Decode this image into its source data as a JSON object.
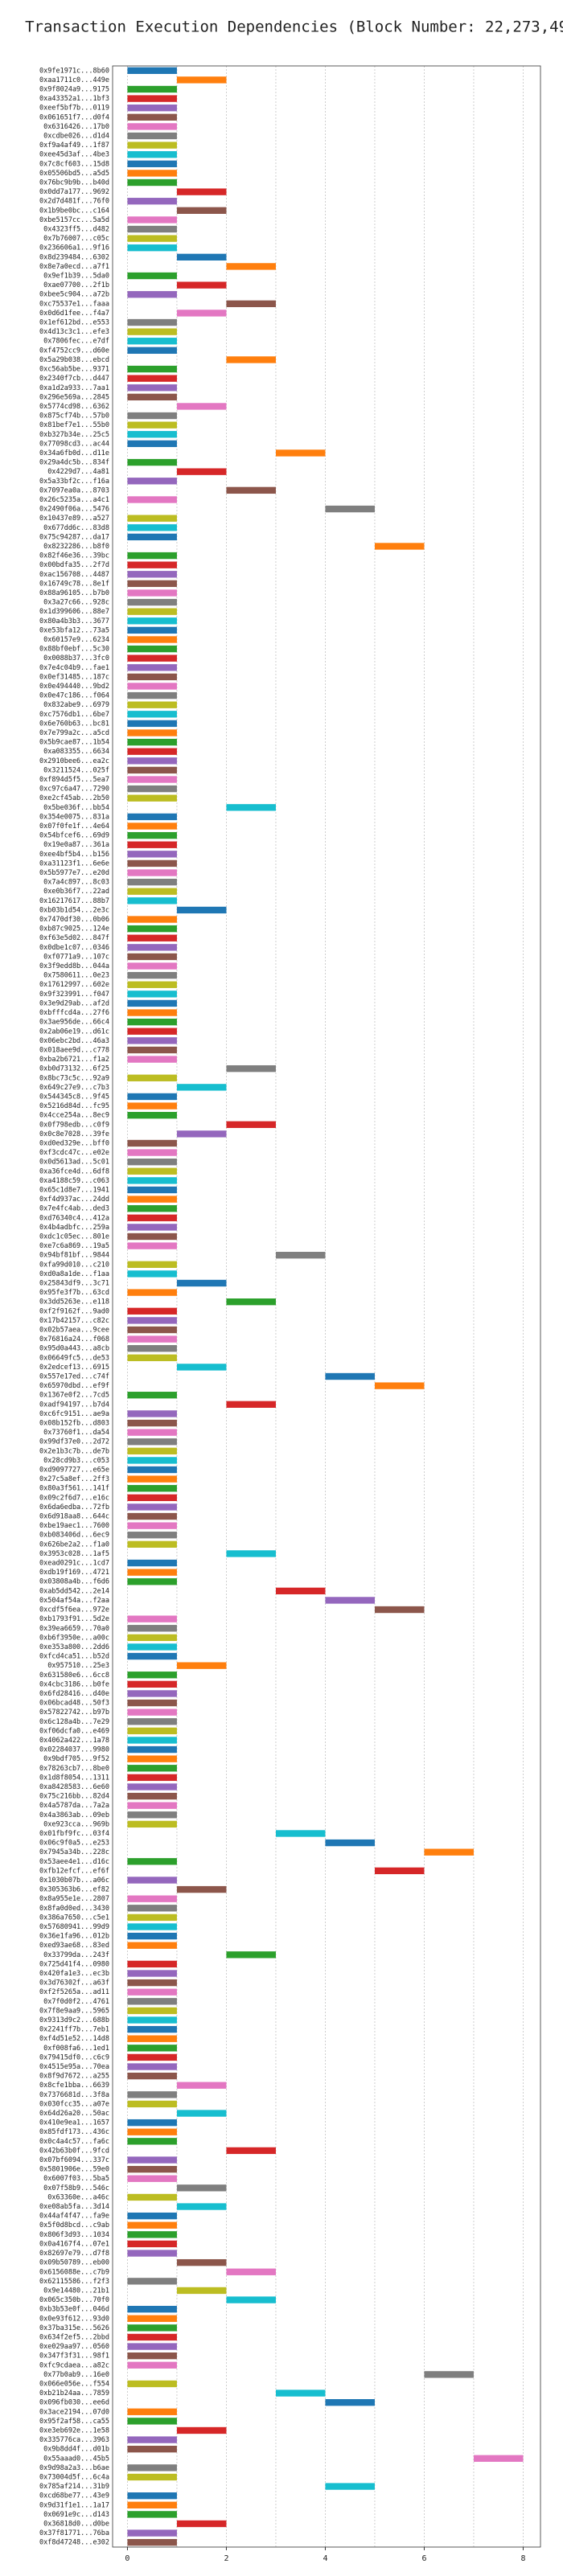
{
  "chart_data": {
    "type": "gantt",
    "title": "Transaction Execution Dependencies (Block Number: 22,273,496)",
    "colors": [
      "#1f77b4",
      "#ff7f0e",
      "#2ca02c",
      "#d62728",
      "#9467bd",
      "#8c564b",
      "#e377c2",
      "#7f7f7f",
      "#bcbd22",
      "#17becf"
    ],
    "xlim": [
      -0.3,
      8.35
    ],
    "xticks": [
      0,
      2,
      4,
      6,
      8
    ],
    "grid_xticks": [
      0,
      1,
      2,
      3,
      4,
      5,
      6,
      7,
      8
    ],
    "grid": true,
    "labels": [
      "0x9fe1971c...8b60",
      "0xaa1711c0...449e",
      "0x9f8024a9...9175",
      "0xa43352a1...1bf3",
      "0xeef5bf7b...0119",
      "0x061651f7...d0f4",
      "0x6316426...17b0",
      "0xcdbe026...d1d4",
      "0xf9a4af49...1f87",
      "0xee45d3af...4be3",
      "0x7c8cf603...15d8",
      "0x05506bd5...a5d5",
      "0x76bc9b9b...b40d",
      "0x0dd7a177...9692",
      "0x2d7d481f...76f0",
      "0x1b9be0bc...c164",
      "0xbe5157cc...5a5d",
      "0x4323ff5...d482",
      "0x7b76007...c05c",
      "0x236606a1...9f16",
      "0x8d239484...6302",
      "0x8e7a0ecd...a7f1",
      "0x9ef1b39...5da0",
      "0xae07700...2f1b",
      "0xbee5c904...a72b",
      "0xc75537e1...faaa",
      "0x0d6d1fee...f4a7",
      "0x1ef612bd...e553",
      "0x4d13c3c1...efe3",
      "0x7806fec...e7df",
      "0xf4752cc9...d60e",
      "0x5a29b038...ebcd",
      "0xc56ab5be...9371",
      "0x2340f7cb...d447",
      "0xa1d2a933...7aa1",
      "0x296e569a...2845",
      "0x5774cd98...6362",
      "0x875cf74b...57b0",
      "0x81bef7e1...55b0",
      "0xb327b34e...25c5",
      "0x77098cd3...ac44",
      "0x34a6fb0d...d11e",
      "0x29a4dc5b...834f",
      "0x4229d7...4a81",
      "0x5a33bf2c...f16a",
      "0x7097ea0a...8703",
      "0x26c5235a...a4c1",
      "0x2490f06a...5476",
      "0x10437e89...a527",
      "0x677dd6c...83d8",
      "0x75c94287...da17",
      "0x8232286...b8f0",
      "0x82f46e36...39bc",
      "0x00bdfa35...2f7d",
      "0xac156708...4487",
      "0x16749c78...8e1f",
      "0x88a96105...b7b0",
      "0x3a27c66...928c",
      "0x1d399606...88e7",
      "0x80a4b3b3...3677",
      "0xe53bfa12...73a5",
      "0x60157e9...6234",
      "0x88bf0ebf...5c30",
      "0x0088b37...3fc0",
      "0x7e4c04b9...fae1",
      "0x0ef31485...187c",
      "0x0e494440...9bd2",
      "0x0e47c186...f064",
      "0x832abe9...6979",
      "0xc7576db1...6be7",
      "0x6e760b63...bc81",
      "0x7e799a2c...a5cd",
      "0x5b9cae87...1b54",
      "0xa083355...6634",
      "0x2910bee6...ea2c",
      "0x3211524...025f",
      "0xf894d5f5...5ea7",
      "0xc97c6a47...7290",
      "0xe2cf45ab...2b50",
      "0x5be036f...bb54",
      "0x354e0075...831a",
      "0x07f0fe1f...4e64",
      "0x54bfcef6...69d9",
      "0x19e0a87...361a",
      "0xee4bf5b4...b156",
      "0xa31123f1...6e6e",
      "0x5b5977e7...e20d",
      "0x7a4c897...8c03",
      "0xe0b36f7...22ad",
      "0x16217617...88b7",
      "0xb03b1d54...2e3c",
      "0x7470df30...0b06",
      "0xb87c9025...124e",
      "0xf63e5d02...847f",
      "0x0dbe1c07...0346",
      "0xf0771a9...107c",
      "0x3f9edd8b...044a",
      "0x7580611...0e23",
      "0x17612997...602e",
      "0x9f323991...f047",
      "0x3e9d29ab...af2d",
      "0xbfffcd4a...27f6",
      "0x3ae956de...66c4",
      "0x2ab06e19...d61c",
      "0x06ebc2bd...46a3",
      "0x018aee9d...c778",
      "0xba2b6721...f1a2",
      "0xb0d73132...6f25",
      "0x8bc73c5c...92a9",
      "0x649c27e9...c7b3",
      "0x544345c8...9f45",
      "0x5216d84d...fc95",
      "0x4cce254a...8ec9",
      "0x0f798edb...c0f9",
      "0x0c8e7028...39fe",
      "0xd0ed329e...bff0",
      "0xf3cdc47c...e02e",
      "0x0d5613ad...5c01",
      "0xa36fce4d...6df8",
      "0xa4188c59...c063",
      "0x65c1d8e7...1941",
      "0xf4d937ac...24dd",
      "0x7e4fc4ab...ded3",
      "0xd76340c4...412a",
      "0x4b4adbfc...259a",
      "0xdc1c05ec...801e",
      "0xe7c6a869...19a5",
      "0x94bf81bf...9844",
      "0xfa99d010...c210",
      "0xd0a8a1de...f1aa",
      "0x25843df9...3c71",
      "0x95fe3f7b...63cd",
      "0x3dd5263e...e118",
      "0xf2f9162f...9ad0",
      "0x17b42157...c82c",
      "0x02b57aea...9cee",
      "0x76816a24...f068",
      "0x95d0a443...a8cb",
      "0x06649fc5...de53",
      "0x2edcef13...6915",
      "0x557e17ed...c74f",
      "0x65970dbd...ef9f",
      "0x1367e0f2...7cd5",
      "0xadf94197...b7d4",
      "0xc6fc9151...ae9a",
      "0x08b152fb...d803",
      "0x73760f1...da54",
      "0x99df37e0...2d72",
      "0x2e1b3c7b...de7b",
      "0x28cd9b3...c053",
      "0xd9097727...e65e",
      "0x27c5a8ef...2ff3",
      "0x80a3f561...141f",
      "0x09c2f6d7...e16c",
      "0x6da6edba...72fb",
      "0x6d918aa8...644c",
      "0xbe19aec1...7600",
      "0xb083406d...6ec9",
      "0x626be2a2...f1a0",
      "0x3953c028...1af5",
      "0xead0291c...1cd7",
      "0xdb19f169...4721",
      "0x03808a4b...f6d6",
      "0xab5dd542...2e14",
      "0x504af54a...f2aa",
      "0xcdf5f6ea...972e",
      "0xb1793f91...5d2e",
      "0x39ea6659...70a0",
      "0xb6f3950e...a00c",
      "0xe353a800...2dd6",
      "0xfcd4ca51...b52d",
      "0x957510...25e3",
      "0x631580e6...6cc8",
      "0x4cbc3186...b0fe",
      "0x6fd28416...d40e",
      "0x06bcad48...50f3",
      "0x57822742...b97b",
      "0x6c128a4b...7e29",
      "0xf06dcfa0...e469",
      "0x4062a422...1a78",
      "0x02284037...9980",
      "0x9bdf705...9f52",
      "0x78263cb7...8be0",
      "0x1d8f8054...1311",
      "0xa8428583...6e60",
      "0x75c216bb...82d4",
      "0x4a5787da...7a2a",
      "0x4a3863ab...09eb",
      "0xe923cca...969b",
      "0x01fbf9fc...03f4",
      "0x06c9f0a5...e253",
      "0x7945a34b...228c",
      "0x53aee4e1...d16c",
      "0xfb12efcf...ef6f",
      "0x1030b07b...a06c",
      "0x305363b6...ef82",
      "0x8a955e1e...2807",
      "0x8fa0d0ed...3430",
      "0x386a7650...c5e1",
      "0x57680941...99d9",
      "0x36e1fa96...012b",
      "0xed93ae68...83ed",
      "0x33799da...243f",
      "0x725d41f4...0980",
      "0x420fa1e3...ec3b",
      "0x3d76302f...a63f",
      "0xf2f5265a...ad11",
      "0x7f0d0f2...4761",
      "0x7f8e9aa9...5965",
      "0x9313d9c2...688b",
      "0x2241ff7b...7eb1",
      "0xf4d51e52...14d8",
      "0xf008fa6...1ed1",
      "0x79415df0...c6c9",
      "0x4515e95a...70ea",
      "0x8f9d7672...a255",
      "0x8cfe1bba...6639",
      "0x7376681d...3f8a",
      "0x030fcc35...a07e",
      "0x64d26a20...50ac",
      "0x410e9ea1...1657",
      "0x85fdf173...436c",
      "0x0c4a4c57...fa6c",
      "0x42b63b0f...9fcd",
      "0x07bf6094...337c",
      "0x5801906e...59e0",
      "0x6007f03...5ba5",
      "0x07f58b9...546c",
      "0x63360e...a46c",
      "0xe08ab5fa...3d14",
      "0x44af4f47...fa9e",
      "0x5f0d8bcd...c9ab",
      "0x806f3d93...1034",
      "0x0a4167f4...07e1",
      "0x82697e79...d7f8",
      "0x09b50789...eb00",
      "0x6156088e...c7b9",
      "0x62115586...f2f3",
      "0x9e14480...21b1",
      "0x065c350b...70f0",
      "0xb3b53e0f...046d",
      "0x0e93f612...93d0",
      "0x37ba315e...5626",
      "0x634f2ef5...2bbd",
      "0xe029aa97...0560",
      "0x347f3f31...98f1",
      "0xfc9cdaea...a82c",
      "0x77b0ab9...16e0",
      "0x066e056e...f554",
      "0xb21b24aa...7859",
      "0x096fb030...ee6d",
      "0x3ace2194...07d0",
      "0x95f2af58...ca55",
      "0xe3eb692e...1e58",
      "0x335776ca...3963",
      "0x9b8dd4f...d01b",
      "0x55aaad0...45b5",
      "0x9d98a2a3...b6ae",
      "0x73004d5f...6c4a",
      "0x785af214...31b9",
      "0xcd68be77...43e9",
      "0x9d31f1e1...1a17",
      "0x0691e9c...d143",
      "0x36818d0...d0be",
      "0x37f81771...76ba",
      "0xf8d47248...e302"
    ],
    "start": [
      0,
      1,
      0,
      0,
      0,
      0,
      0,
      0,
      0,
      0,
      0,
      0,
      0,
      1,
      0,
      1,
      0,
      0,
      0,
      0,
      1,
      2,
      0,
      1,
      0,
      2,
      1,
      0,
      0,
      0,
      0,
      2,
      0,
      0,
      0,
      0,
      1,
      0,
      0,
      0,
      0,
      3,
      0,
      1,
      0,
      2,
      0,
      4,
      0,
      0,
      0,
      5,
      0,
      0,
      0,
      0,
      0,
      0,
      0,
      0,
      0,
      0,
      0,
      0,
      0,
      0,
      0,
      0,
      0,
      0,
      0,
      0,
      0,
      0,
      0,
      0,
      0,
      0,
      0,
      2,
      0,
      0,
      0,
      0,
      0,
      0,
      0,
      0,
      0,
      0,
      1,
      0,
      0,
      0,
      0,
      0,
      0,
      0,
      0,
      0,
      0,
      0,
      0,
      0,
      0,
      0,
      0,
      2,
      0,
      1,
      0,
      0,
      0,
      2,
      1,
      0,
      0,
      0,
      0,
      0,
      0,
      0,
      0,
      0,
      0,
      0,
      0,
      3,
      0,
      0,
      1,
      0,
      2,
      0,
      0,
      0,
      0,
      0,
      0,
      1,
      4,
      5,
      0,
      2,
      0,
      0,
      0,
      0,
      0,
      0,
      0,
      0,
      0,
      0,
      0,
      0,
      0,
      0,
      0,
      2,
      0,
      0,
      0,
      3,
      4,
      5,
      0,
      0,
      0,
      0,
      0,
      1,
      0,
      0,
      0,
      0,
      0,
      0,
      0,
      0,
      0,
      0,
      0,
      0,
      0,
      0,
      0,
      0,
      0,
      3,
      4,
      6,
      0,
      5,
      0,
      1,
      0,
      0,
      0,
      0,
      0,
      0,
      2,
      0,
      0,
      0,
      0,
      0,
      0,
      0,
      0,
      0,
      0,
      0,
      0,
      0,
      1,
      0,
      0,
      1,
      0,
      0,
      0,
      2,
      0,
      0,
      0,
      1,
      0,
      1,
      0,
      0,
      0,
      0,
      0,
      1,
      2,
      0,
      1,
      2,
      0,
      0,
      0,
      0,
      0,
      0,
      0,
      6,
      0,
      3,
      4,
      0,
      0,
      1,
      0,
      0,
      7,
      0,
      0,
      4,
      0,
      0,
      0,
      1,
      0,
      0
    ],
    "end": [
      1,
      2,
      1,
      1,
      1,
      1,
      1,
      1,
      1,
      1,
      1,
      1,
      1,
      2,
      1,
      2,
      1,
      1,
      1,
      1,
      2,
      3,
      1,
      2,
      1,
      3,
      2,
      1,
      1,
      1,
      1,
      3,
      1,
      1,
      1,
      1,
      2,
      1,
      1,
      1,
      1,
      4,
      1,
      2,
      1,
      3,
      1,
      5,
      1,
      1,
      1,
      6,
      1,
      1,
      1,
      1,
      1,
      1,
      1,
      1,
      1,
      1,
      1,
      1,
      1,
      1,
      1,
      1,
      1,
      1,
      1,
      1,
      1,
      1,
      1,
      1,
      1,
      1,
      1,
      3,
      1,
      1,
      1,
      1,
      1,
      1,
      1,
      1,
      1,
      1,
      2,
      1,
      1,
      1,
      1,
      1,
      1,
      1,
      1,
      1,
      1,
      1,
      1,
      1,
      1,
      1,
      1,
      3,
      1,
      2,
      1,
      1,
      1,
      3,
      2,
      1,
      1,
      1,
      1,
      1,
      1,
      1,
      1,
      1,
      1,
      1,
      1,
      4,
      1,
      1,
      2,
      1,
      3,
      1,
      1,
      1,
      1,
      1,
      1,
      2,
      5,
      6,
      1,
      3,
      1,
      1,
      1,
      1,
      1,
      1,
      1,
      1,
      1,
      1,
      1,
      1,
      1,
      1,
      1,
      3,
      1,
      1,
      1,
      4,
      5,
      6,
      1,
      1,
      1,
      1,
      1,
      2,
      1,
      1,
      1,
      1,
      1,
      1,
      1,
      1,
      1,
      1,
      1,
      1,
      1,
      1,
      1,
      1,
      1,
      4,
      5,
      7,
      1,
      6,
      1,
      2,
      1,
      1,
      1,
      1,
      1,
      1,
      3,
      1,
      1,
      1,
      1,
      1,
      1,
      1,
      1,
      1,
      1,
      1,
      1,
      1,
      2,
      1,
      1,
      2,
      1,
      1,
      1,
      3,
      1,
      1,
      1,
      2,
      1,
      2,
      1,
      1,
      1,
      1,
      1,
      2,
      3,
      1,
      2,
      3,
      1,
      1,
      1,
      1,
      1,
      1,
      1,
      7,
      1,
      4,
      5,
      1,
      1,
      2,
      1,
      1,
      8,
      1,
      1,
      5,
      1,
      1,
      1,
      2,
      1,
      1
    ]
  }
}
